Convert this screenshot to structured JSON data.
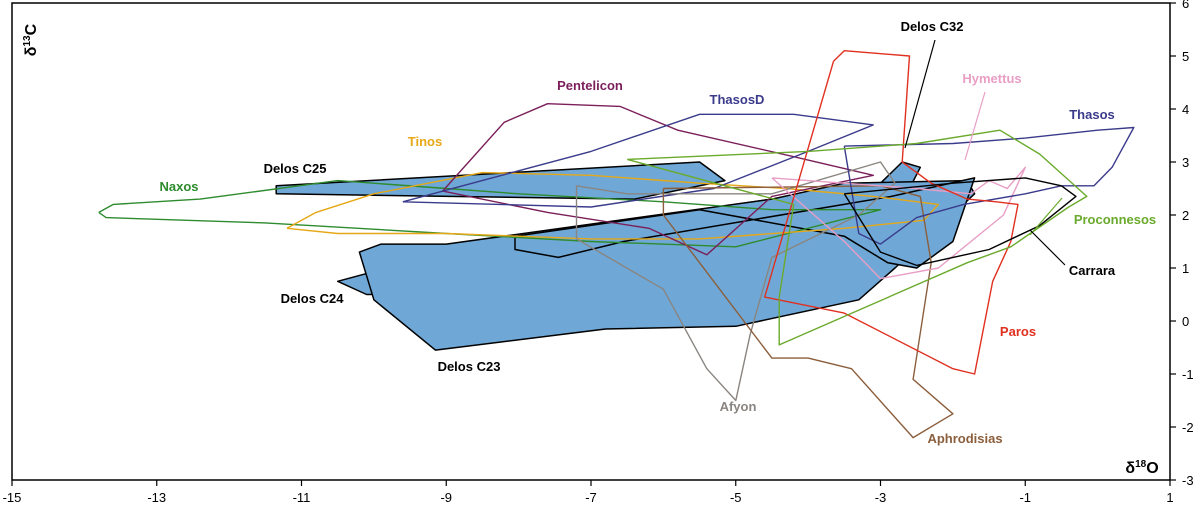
{
  "chart_data": {
    "type": "area",
    "title": "",
    "xlabel": "δ18O",
    "ylabel": "δ13C",
    "xlim": [
      -15,
      1
    ],
    "ylim": [
      -3,
      6
    ],
    "x_ticks": [
      -15,
      -13,
      -11,
      -9,
      -7,
      -5,
      -3,
      -1,
      1
    ],
    "y_ticks": [
      6,
      5,
      4,
      3,
      2,
      1,
      0,
      -1,
      -2,
      -3
    ],
    "grid": false,
    "legend": "none (regions labelled directly)",
    "series": [
      {
        "name": "Delos C25",
        "kind": "filled",
        "fill": "#6fa8d6",
        "stroke": "#000000",
        "points": [
          [
            -11.35,
            2.55
          ],
          [
            -5.5,
            3.0
          ],
          [
            -5.15,
            2.65
          ],
          [
            -6.4,
            2.3
          ],
          [
            -11.35,
            2.4
          ]
        ]
      },
      {
        "name": "Delos C24",
        "kind": "filled",
        "fill": "#6fa8d6",
        "stroke": "#000000",
        "points": [
          [
            -10.5,
            0.75
          ],
          [
            -9.0,
            1.3
          ],
          [
            -5.0,
            2.2
          ],
          [
            -3.0,
            2.6
          ],
          [
            -2.7,
            3.0
          ],
          [
            -2.45,
            2.9
          ],
          [
            -2.6,
            2.5
          ],
          [
            -4.0,
            1.45
          ],
          [
            -7.0,
            0.55
          ],
          [
            -10.1,
            0.5
          ]
        ]
      },
      {
        "name": "Delos C23",
        "kind": "filled",
        "fill": "#6fa8d6",
        "stroke": "#000000",
        "points": [
          [
            -9.15,
            -0.55
          ],
          [
            -10.0,
            0.4
          ],
          [
            -10.2,
            1.3
          ],
          [
            -9.9,
            1.45
          ],
          [
            -9.0,
            1.45
          ],
          [
            -4.5,
            2.3
          ],
          [
            -3.5,
            2.6
          ],
          [
            -1.8,
            2.65
          ],
          [
            -1.7,
            2.4
          ],
          [
            -2.8,
            1.0
          ],
          [
            -3.3,
            0.4
          ],
          [
            -5.0,
            -0.1
          ],
          [
            -6.8,
            -0.15
          ],
          [
            -9.15,
            -0.55
          ]
        ]
      },
      {
        "name": "Delos C32",
        "kind": "filled",
        "fill": "#6fa8d6",
        "stroke": "#000000",
        "points": [
          [
            -8.05,
            1.35
          ],
          [
            -7.45,
            1.2
          ],
          [
            -6.55,
            1.5
          ],
          [
            -2.85,
            2.35
          ],
          [
            -1.7,
            2.7
          ],
          [
            -2.0,
            1.5
          ],
          [
            -2.5,
            1.0
          ],
          [
            -2.9,
            1.1
          ],
          [
            -3.5,
            1.6
          ],
          [
            -5.5,
            2.1
          ],
          [
            -8.05,
            1.6
          ]
        ]
      },
      {
        "name": "Naxos",
        "kind": "outline",
        "stroke": "#2e8b2e",
        "points": [
          [
            -13.8,
            2.05
          ],
          [
            -13.6,
            2.2
          ],
          [
            -12.4,
            2.3
          ],
          [
            -10.5,
            2.65
          ],
          [
            -9.0,
            2.5
          ],
          [
            -8.0,
            2.4
          ],
          [
            -6.0,
            2.25
          ],
          [
            -4.5,
            2.1
          ],
          [
            -3.5,
            2.1
          ],
          [
            -3.0,
            2.1
          ],
          [
            -5.0,
            1.4
          ],
          [
            -7.0,
            1.5
          ],
          [
            -9.0,
            1.65
          ],
          [
            -11.5,
            1.85
          ],
          [
            -13.7,
            1.95
          ],
          [
            -13.8,
            2.05
          ]
        ]
      },
      {
        "name": "Tinos",
        "kind": "outline",
        "stroke": "#e6a817",
        "points": [
          [
            -11.2,
            1.75
          ],
          [
            -10.8,
            2.05
          ],
          [
            -10.0,
            2.4
          ],
          [
            -8.5,
            2.8
          ],
          [
            -7.0,
            2.75
          ],
          [
            -5.5,
            2.6
          ],
          [
            -4.3,
            2.5
          ],
          [
            -3.1,
            2.35
          ],
          [
            -2.2,
            2.2
          ],
          [
            -2.4,
            1.9
          ],
          [
            -3.5,
            1.75
          ],
          [
            -5.5,
            1.55
          ],
          [
            -7.0,
            1.55
          ],
          [
            -9.0,
            1.65
          ],
          [
            -10.5,
            1.65
          ],
          [
            -11.2,
            1.75
          ]
        ]
      },
      {
        "name": "Pentelicon",
        "kind": "outline",
        "stroke": "#7b1f5a",
        "points": [
          [
            -9.05,
            2.45
          ],
          [
            -8.2,
            3.75
          ],
          [
            -7.6,
            4.1
          ],
          [
            -6.6,
            4.05
          ],
          [
            -5.8,
            3.6
          ],
          [
            -4.2,
            3.1
          ],
          [
            -3.1,
            2.75
          ],
          [
            -4.5,
            2.35
          ],
          [
            -5.4,
            1.25
          ],
          [
            -6.2,
            1.75
          ],
          [
            -7.6,
            2.05
          ],
          [
            -9.05,
            2.45
          ]
        ]
      },
      {
        "name": "ThasosD",
        "kind": "outline",
        "stroke": "#3b3b8c",
        "points": [
          [
            -9.6,
            2.25
          ],
          [
            -7.0,
            3.2
          ],
          [
            -5.5,
            3.9
          ],
          [
            -4.2,
            3.9
          ],
          [
            -3.1,
            3.7
          ],
          [
            -4.0,
            3.2
          ],
          [
            -5.3,
            2.5
          ],
          [
            -7.0,
            2.15
          ],
          [
            -9.6,
            2.25
          ]
        ]
      },
      {
        "name": "Afyon",
        "kind": "outline",
        "stroke": "#8a8580",
        "points": [
          [
            -7.2,
            2.55
          ],
          [
            -6.5,
            2.4
          ],
          [
            -4.5,
            2.4
          ],
          [
            -3.0,
            3.0
          ],
          [
            -2.8,
            2.6
          ],
          [
            -3.3,
            2.0
          ],
          [
            -4.5,
            1.2
          ],
          [
            -4.8,
            -0.25
          ],
          [
            -5.0,
            -1.5
          ],
          [
            -5.4,
            -0.9
          ],
          [
            -6.0,
            0.6
          ],
          [
            -7.2,
            1.55
          ],
          [
            -7.2,
            2.55
          ]
        ]
      },
      {
        "name": "Aphrodisias",
        "kind": "outline",
        "stroke": "#8b5e3c",
        "points": [
          [
            -6.0,
            2.5
          ],
          [
            -3.0,
            2.55
          ],
          [
            -2.45,
            2.35
          ],
          [
            -2.3,
            1.1
          ],
          [
            -2.55,
            -1.1
          ],
          [
            -2.0,
            -1.75
          ],
          [
            -2.55,
            -2.2
          ],
          [
            -3.4,
            -0.9
          ],
          [
            -4.0,
            -0.7
          ],
          [
            -4.5,
            -0.7
          ],
          [
            -6.0,
            2.0
          ],
          [
            -6.0,
            2.5
          ]
        ]
      },
      {
        "name": "Hymettus",
        "kind": "outline",
        "stroke": "#e89ec5",
        "points": [
          [
            -4.5,
            2.7
          ],
          [
            -2.5,
            2.5
          ],
          [
            -1.75,
            2.4
          ],
          [
            -1.5,
            2.65
          ],
          [
            -1.25,
            2.5
          ],
          [
            -1.0,
            2.9
          ],
          [
            -1.3,
            2.0
          ],
          [
            -2.2,
            1.0
          ],
          [
            -3.0,
            0.8
          ],
          [
            -3.5,
            1.5
          ],
          [
            -4.5,
            2.7
          ]
        ]
      },
      {
        "name": "Thasos",
        "kind": "outline",
        "stroke": "#3b3b8c",
        "points": [
          [
            -3.5,
            3.3
          ],
          [
            -2.0,
            3.35
          ],
          [
            -1.0,
            3.45
          ],
          [
            0.0,
            3.6
          ],
          [
            0.5,
            3.65
          ],
          [
            0.2,
            2.9
          ],
          [
            -0.05,
            2.55
          ],
          [
            -0.5,
            2.55
          ],
          [
            -1.0,
            2.4
          ],
          [
            -1.85,
            2.2
          ],
          [
            -2.5,
            1.95
          ],
          [
            -3.0,
            1.45
          ],
          [
            -3.3,
            1.65
          ],
          [
            -3.5,
            3.3
          ]
        ]
      },
      {
        "name": "Paros",
        "kind": "outline",
        "stroke": "#e03020",
        "points": [
          [
            -3.65,
            4.9
          ],
          [
            -3.5,
            5.1
          ],
          [
            -2.6,
            5.0
          ],
          [
            -2.7,
            3.0
          ],
          [
            -2.3,
            2.6
          ],
          [
            -1.8,
            2.3
          ],
          [
            -1.4,
            2.25
          ],
          [
            -1.1,
            2.2
          ],
          [
            -1.2,
            1.5
          ],
          [
            -1.45,
            0.75
          ],
          [
            -1.7,
            -1.0
          ],
          [
            -2.0,
            -0.9
          ],
          [
            -3.5,
            0.15
          ],
          [
            -4.6,
            0.45
          ],
          [
            -3.65,
            4.9
          ]
        ]
      },
      {
        "name": "Carrara",
        "kind": "outline",
        "stroke": "#000000",
        "points": [
          [
            -3.5,
            2.4
          ],
          [
            -2.0,
            2.6
          ],
          [
            -1.0,
            2.7
          ],
          [
            -0.5,
            2.55
          ],
          [
            -0.3,
            2.35
          ],
          [
            -0.8,
            1.8
          ],
          [
            -1.5,
            1.35
          ],
          [
            -2.5,
            1.05
          ],
          [
            -3.0,
            1.3
          ],
          [
            -3.5,
            2.4
          ]
        ]
      },
      {
        "name": "Proconnesos",
        "kind": "outline",
        "stroke": "#6aaa2c",
        "points": [
          [
            -6.5,
            3.05
          ],
          [
            -4.0,
            3.2
          ],
          [
            -2.5,
            3.35
          ],
          [
            -1.35,
            3.6
          ],
          [
            -0.8,
            3.15
          ],
          [
            -0.15,
            2.35
          ],
          [
            -0.4,
            2.15
          ],
          [
            -1.2,
            1.4
          ],
          [
            -1.8,
            1.1
          ],
          [
            -4.4,
            -0.45
          ],
          [
            -4.4,
            0.45
          ],
          [
            -4.2,
            2.2
          ],
          [
            -6.5,
            3.05
          ]
        ]
      }
    ],
    "labels": [
      {
        "text": "Delos C32",
        "color": "#000000"
      },
      {
        "text": "Hymettus",
        "color": "#e89ec5"
      },
      {
        "text": "Thasos",
        "color": "#3b3b8c"
      },
      {
        "text": "Pentelicon",
        "color": "#7b1f5a"
      },
      {
        "text": "ThasosD",
        "color": "#3b3b8c"
      },
      {
        "text": "Tinos",
        "color": "#e6a817"
      },
      {
        "text": "Delos C25",
        "color": "#000000"
      },
      {
        "text": "Naxos",
        "color": "#2e8b2e"
      },
      {
        "text": "Proconnesos",
        "color": "#6aaa2c"
      },
      {
        "text": "Carrara",
        "color": "#000000"
      },
      {
        "text": "Delos C24",
        "color": "#000000"
      },
      {
        "text": "Paros",
        "color": "#e03020"
      },
      {
        "text": "Delos C23",
        "color": "#000000"
      },
      {
        "text": "Afyon",
        "color": "#8a8580"
      },
      {
        "text": "Aphrodisias",
        "color": "#8b5e3c"
      }
    ]
  }
}
